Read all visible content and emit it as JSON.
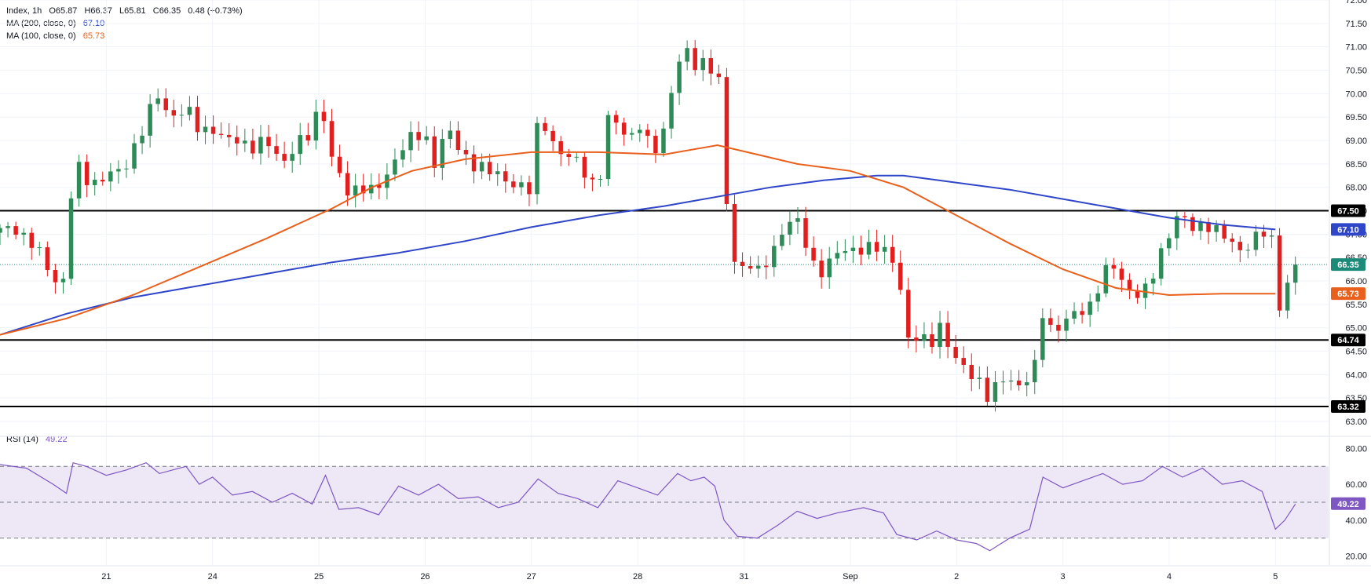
{
  "legend": {
    "symbol": "Index, 1h",
    "open": "O65.87",
    "high": "H66.37",
    "low": "L65.81",
    "close": "C66.35",
    "change": "0.48 (+0.73%)",
    "ma200_label": "MA (200, close, 0)",
    "ma200_value": "67.10",
    "ma100_label": "MA (100, close, 0)",
    "ma100_value": "65.73",
    "rsi_label": "RSI (14)",
    "rsi_value": "49.22"
  },
  "colors": {
    "up": "#2E8B57",
    "down": "#E21F1F",
    "ma200": "#2F46C8",
    "ma100": "#E8601C",
    "rsi": "#7E57C2",
    "rsi_band": "#EDE7F6",
    "level": "#000000",
    "last_price": "#1B8A78"
  },
  "chart_data": {
    "type": "candlestick",
    "y_axis": {
      "range": [
        62.75,
        72.0
      ],
      "ticks": [
        "63.00",
        "63.50",
        "64.00",
        "64.50",
        "65.00",
        "65.50",
        "66.00",
        "66.50",
        "67.00",
        "67.50",
        "68.00",
        "68.50",
        "69.00",
        "69.50",
        "70.00",
        "70.50",
        "71.00",
        "71.50",
        "72.00"
      ]
    },
    "x_axis": {
      "range": [
        0,
        1.0
      ],
      "labels": [
        {
          "label": "21",
          "pos": 0.08
        },
        {
          "label": "24",
          "pos": 0.16
        },
        {
          "label": "25",
          "pos": 0.24
        },
        {
          "label": "26",
          "pos": 0.32
        },
        {
          "label": "27",
          "pos": 0.4
        },
        {
          "label": "28",
          "pos": 0.48
        },
        {
          "label": "31",
          "pos": 0.56
        },
        {
          "label": "Sep",
          "pos": 0.64
        },
        {
          "label": "2",
          "pos": 0.72
        },
        {
          "label": "3",
          "pos": 0.8
        },
        {
          "label": "4",
          "pos": 0.88
        },
        {
          "label": "5",
          "pos": 0.96
        }
      ]
    },
    "levels": [
      {
        "value": 67.5,
        "label": "67.50"
      },
      {
        "value": 64.74,
        "label": "64.74"
      },
      {
        "value": 63.32,
        "label": "63.32"
      }
    ],
    "last_price": {
      "value": 66.35,
      "label": "66.35"
    },
    "ma_badges": [
      {
        "series": "ma200",
        "value": 67.1,
        "label": "67.10"
      },
      {
        "series": "ma100",
        "value": 65.73,
        "label": "65.73"
      }
    ],
    "price_path": [
      [
        0.0,
        67.05
      ],
      [
        0.012,
        67.15
      ],
      [
        0.025,
        66.75
      ],
      [
        0.04,
        66.1
      ],
      [
        0.047,
        65.85
      ],
      [
        0.052,
        67.6
      ],
      [
        0.058,
        68.4
      ],
      [
        0.068,
        68.1
      ],
      [
        0.08,
        68.25
      ],
      [
        0.092,
        68.3
      ],
      [
        0.1,
        68.85
      ],
      [
        0.11,
        69.4
      ],
      [
        0.118,
        69.95
      ],
      [
        0.128,
        69.55
      ],
      [
        0.14,
        69.65
      ],
      [
        0.15,
        69.2
      ],
      [
        0.16,
        69.3
      ],
      [
        0.17,
        68.95
      ],
      [
        0.18,
        69.0
      ],
      [
        0.19,
        68.9
      ],
      [
        0.2,
        68.95
      ],
      [
        0.212,
        68.55
      ],
      [
        0.222,
        68.9
      ],
      [
        0.232,
        69.05
      ],
      [
        0.242,
        69.85
      ],
      [
        0.25,
        68.6
      ],
      [
        0.262,
        67.8
      ],
      [
        0.272,
        68.1
      ],
      [
        0.282,
        67.9
      ],
      [
        0.292,
        68.2
      ],
      [
        0.3,
        68.85
      ],
      [
        0.31,
        69.1
      ],
      [
        0.32,
        69.0
      ],
      [
        0.328,
        68.5
      ],
      [
        0.336,
        69.4
      ],
      [
        0.344,
        68.8
      ],
      [
        0.352,
        68.55
      ],
      [
        0.362,
        68.5
      ],
      [
        0.372,
        68.25
      ],
      [
        0.382,
        68.1
      ],
      [
        0.39,
        68.15
      ],
      [
        0.398,
        67.85
      ],
      [
        0.406,
        69.55
      ],
      [
        0.414,
        69.1
      ],
      [
        0.422,
        68.75
      ],
      [
        0.432,
        68.55
      ],
      [
        0.442,
        68.3
      ],
      [
        0.45,
        67.95
      ],
      [
        0.458,
        69.45
      ],
      [
        0.466,
        69.3
      ],
      [
        0.474,
        69.1
      ],
      [
        0.482,
        69.35
      ],
      [
        0.49,
        68.7
      ],
      [
        0.497,
        68.9
      ],
      [
        0.506,
        70.2
      ],
      [
        0.514,
        70.95
      ],
      [
        0.52,
        70.7
      ],
      [
        0.526,
        70.5
      ],
      [
        0.532,
        70.9
      ],
      [
        0.537,
        70.4
      ],
      [
        0.541,
        70.25
      ],
      [
        0.543,
        68.3
      ],
      [
        0.546,
        67.9
      ],
      [
        0.55,
        66.6
      ],
      [
        0.556,
        66.25
      ],
      [
        0.564,
        66.45
      ],
      [
        0.572,
        66.1
      ],
      [
        0.58,
        66.5
      ],
      [
        0.59,
        67.2
      ],
      [
        0.598,
        67.4
      ],
      [
        0.605,
        66.85
      ],
      [
        0.612,
        66.35
      ],
      [
        0.62,
        66.25
      ],
      [
        0.628,
        66.55
      ],
      [
        0.636,
        66.6
      ],
      [
        0.646,
        66.75
      ],
      [
        0.656,
        66.7
      ],
      [
        0.666,
        66.6
      ],
      [
        0.674,
        66.45
      ],
      [
        0.678,
        65.85
      ],
      [
        0.682,
        64.7
      ],
      [
        0.69,
        64.75
      ],
      [
        0.7,
        64.7
      ],
      [
        0.708,
        65.1
      ],
      [
        0.714,
        64.55
      ],
      [
        0.72,
        64.25
      ],
      [
        0.728,
        64.1
      ],
      [
        0.735,
        64.05
      ],
      [
        0.742,
        63.45
      ],
      [
        0.75,
        63.7
      ],
      [
        0.758,
        64.05
      ],
      [
        0.764,
        63.85
      ],
      [
        0.77,
        63.65
      ],
      [
        0.776,
        64.1
      ],
      [
        0.78,
        64.15
      ],
      [
        0.784,
        65.4
      ],
      [
        0.79,
        65.05
      ],
      [
        0.798,
        65.0
      ],
      [
        0.806,
        65.2
      ],
      [
        0.814,
        65.4
      ],
      [
        0.822,
        65.55
      ],
      [
        0.83,
        66.1
      ],
      [
        0.838,
        66.3
      ],
      [
        0.846,
        66.0
      ],
      [
        0.852,
        65.75
      ],
      [
        0.86,
        65.65
      ],
      [
        0.866,
        65.95
      ],
      [
        0.872,
        66.55
      ],
      [
        0.878,
        66.9
      ],
      [
        0.884,
        67.35
      ],
      [
        0.892,
        67.25
      ],
      [
        0.9,
        67.1
      ],
      [
        0.906,
        67.3
      ],
      [
        0.912,
        67.15
      ],
      [
        0.918,
        66.95
      ],
      [
        0.926,
        66.85
      ],
      [
        0.934,
        66.7
      ],
      [
        0.942,
        66.8
      ],
      [
        0.948,
        66.95
      ],
      [
        0.954,
        67.05
      ],
      [
        0.958,
        66.85
      ],
      [
        0.962,
        65.5
      ],
      [
        0.966,
        65.6
      ],
      [
        0.97,
        66.05
      ],
      [
        0.975,
        66.35
      ]
    ],
    "series": [
      {
        "name": "MA (200, close, 0)",
        "key": "ma200",
        "points": [
          [
            0.0,
            64.85
          ],
          [
            0.05,
            65.3
          ],
          [
            0.1,
            65.65
          ],
          [
            0.15,
            65.9
          ],
          [
            0.2,
            66.15
          ],
          [
            0.25,
            66.4
          ],
          [
            0.3,
            66.6
          ],
          [
            0.35,
            66.85
          ],
          [
            0.4,
            67.15
          ],
          [
            0.45,
            67.4
          ],
          [
            0.5,
            67.6
          ],
          [
            0.55,
            67.85
          ],
          [
            0.58,
            68.0
          ],
          [
            0.62,
            68.15
          ],
          [
            0.66,
            68.25
          ],
          [
            0.68,
            68.25
          ],
          [
            0.72,
            68.1
          ],
          [
            0.76,
            67.95
          ],
          [
            0.8,
            67.75
          ],
          [
            0.84,
            67.55
          ],
          [
            0.88,
            67.35
          ],
          [
            0.92,
            67.2
          ],
          [
            0.96,
            67.1
          ]
        ]
      },
      {
        "name": "MA (100, close, 0)",
        "key": "ma100",
        "points": [
          [
            0.0,
            64.85
          ],
          [
            0.05,
            65.2
          ],
          [
            0.1,
            65.7
          ],
          [
            0.15,
            66.3
          ],
          [
            0.2,
            66.9
          ],
          [
            0.25,
            67.55
          ],
          [
            0.28,
            68.0
          ],
          [
            0.31,
            68.35
          ],
          [
            0.35,
            68.6
          ],
          [
            0.4,
            68.75
          ],
          [
            0.45,
            68.75
          ],
          [
            0.5,
            68.7
          ],
          [
            0.54,
            68.9
          ],
          [
            0.57,
            68.7
          ],
          [
            0.6,
            68.5
          ],
          [
            0.64,
            68.35
          ],
          [
            0.68,
            68.0
          ],
          [
            0.72,
            67.4
          ],
          [
            0.76,
            66.8
          ],
          [
            0.8,
            66.25
          ],
          [
            0.84,
            65.85
          ],
          [
            0.88,
            65.7
          ],
          [
            0.92,
            65.73
          ],
          [
            0.96,
            65.73
          ]
        ]
      }
    ],
    "rsi": {
      "name": "RSI (14)",
      "y_ticks": [
        "20.00",
        "40.00",
        "60.00",
        "80.00"
      ],
      "range": [
        15,
        85
      ],
      "bands": [
        30,
        50,
        70
      ],
      "points": [
        [
          0.0,
          71
        ],
        [
          0.02,
          69
        ],
        [
          0.04,
          60
        ],
        [
          0.05,
          55
        ],
        [
          0.055,
          72
        ],
        [
          0.065,
          70
        ],
        [
          0.08,
          65
        ],
        [
          0.095,
          68
        ],
        [
          0.11,
          72
        ],
        [
          0.12,
          66
        ],
        [
          0.14,
          70
        ],
        [
          0.15,
          60
        ],
        [
          0.16,
          64
        ],
        [
          0.175,
          54
        ],
        [
          0.19,
          56
        ],
        [
          0.205,
          50
        ],
        [
          0.22,
          55
        ],
        [
          0.235,
          49
        ],
        [
          0.245,
          65
        ],
        [
          0.255,
          46
        ],
        [
          0.27,
          47
        ],
        [
          0.285,
          43
        ],
        [
          0.3,
          59
        ],
        [
          0.315,
          54
        ],
        [
          0.33,
          60
        ],
        [
          0.345,
          52
        ],
        [
          0.36,
          53
        ],
        [
          0.375,
          47
        ],
        [
          0.39,
          50
        ],
        [
          0.405,
          63
        ],
        [
          0.42,
          55
        ],
        [
          0.435,
          52
        ],
        [
          0.45,
          47
        ],
        [
          0.465,
          62
        ],
        [
          0.48,
          58
        ],
        [
          0.495,
          54
        ],
        [
          0.51,
          66
        ],
        [
          0.52,
          62
        ],
        [
          0.53,
          64
        ],
        [
          0.538,
          59
        ],
        [
          0.545,
          40
        ],
        [
          0.555,
          31
        ],
        [
          0.57,
          30
        ],
        [
          0.585,
          37
        ],
        [
          0.6,
          45
        ],
        [
          0.615,
          41
        ],
        [
          0.63,
          44
        ],
        [
          0.65,
          47
        ],
        [
          0.665,
          44
        ],
        [
          0.675,
          32
        ],
        [
          0.69,
          29
        ],
        [
          0.705,
          34
        ],
        [
          0.72,
          29
        ],
        [
          0.735,
          27
        ],
        [
          0.745,
          23
        ],
        [
          0.76,
          30
        ],
        [
          0.775,
          35
        ],
        [
          0.785,
          64
        ],
        [
          0.8,
          58
        ],
        [
          0.815,
          62
        ],
        [
          0.83,
          66
        ],
        [
          0.845,
          60
        ],
        [
          0.86,
          62
        ],
        [
          0.875,
          70
        ],
        [
          0.89,
          64
        ],
        [
          0.905,
          69
        ],
        [
          0.92,
          60
        ],
        [
          0.935,
          62
        ],
        [
          0.95,
          56
        ],
        [
          0.96,
          35
        ],
        [
          0.967,
          40
        ],
        [
          0.975,
          49
        ]
      ]
    }
  }
}
